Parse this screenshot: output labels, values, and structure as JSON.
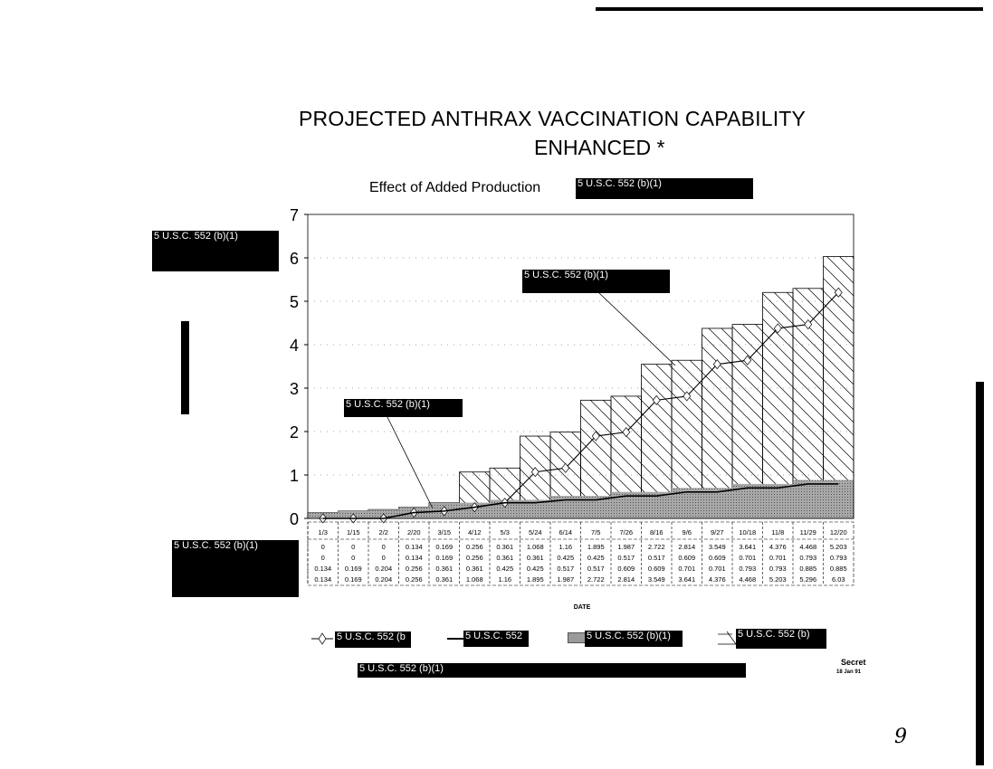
{
  "title_line1": "PROJECTED ANTHRAX VACCINATION CAPABILITY",
  "title_line2": "ENHANCED *",
  "subtitle": "Effect of Added Production",
  "redaction_label": "5 U.S.C. 552 (b)(1)",
  "redaction_label_legend1": "5 U.S.C. 552 (b",
  "redaction_label_legend2": "5 U.S.C. 552",
  "redaction_label_legend4": "5 U.S.C. 552 (b)",
  "classification": "Secret",
  "date_stamp": "18 Jan 91",
  "page_number": "9",
  "chart_data": {
    "type": "bar",
    "xlabel": "DATE",
    "ylabel": "",
    "ylim": [
      0,
      7
    ],
    "yticks": [
      "0",
      "1",
      "2",
      "3",
      "4",
      "5",
      "6",
      "7"
    ],
    "grid": true,
    "legend_placement": "bottom",
    "categories": [
      "1/3",
      "1/15",
      "2/2",
      "2/20",
      "3/15",
      "4/12",
      "5/3",
      "5/24",
      "6/14",
      "7/5",
      "7/26",
      "8/16",
      "9/6",
      "9/27",
      "10/18",
      "11/8",
      "11/29",
      "12/20"
    ],
    "series": [
      {
        "style": "line-diamond",
        "values": [
          0,
          0,
          0,
          0.134,
          0.169,
          0.256,
          0.361,
          1.068,
          1.16,
          1.895,
          1.987,
          2.722,
          2.814,
          3.549,
          3.641,
          4.376,
          4.468,
          5.203
        ]
      },
      {
        "style": "line",
        "values": [
          0,
          0,
          0,
          0.134,
          0.169,
          0.256,
          0.361,
          0.361,
          0.425,
          0.425,
          0.517,
          0.517,
          0.609,
          0.609,
          0.701,
          0.701,
          0.793,
          0.793
        ]
      },
      {
        "style": "shaded-area",
        "color": "#9a9a9a",
        "values": [
          0.134,
          0.169,
          0.204,
          0.256,
          0.361,
          0.361,
          0.425,
          0.425,
          0.517,
          0.517,
          0.609,
          0.609,
          0.701,
          0.701,
          0.793,
          0.793,
          0.885,
          0.885
        ]
      },
      {
        "style": "hatched-bar",
        "values": [
          0.134,
          0.169,
          0.204,
          0.256,
          0.361,
          1.068,
          1.16,
          1.895,
          1.987,
          2.722,
          2.814,
          3.549,
          3.641,
          4.376,
          4.468,
          5.203,
          5.296,
          6.03
        ]
      }
    ]
  }
}
